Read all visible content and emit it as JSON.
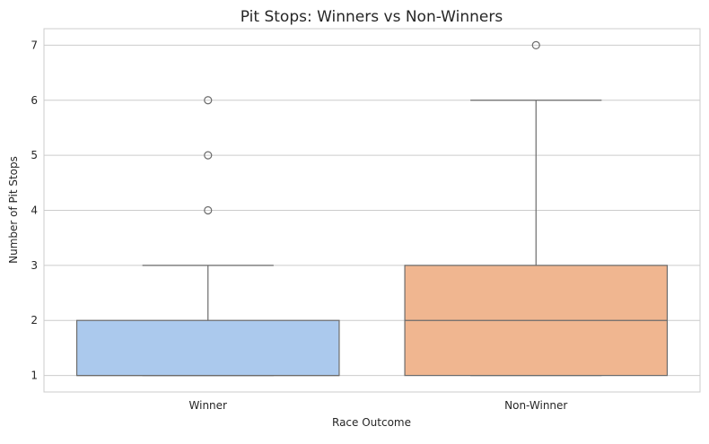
{
  "chart_data": {
    "type": "boxplot",
    "title": "Pit Stops: Winners vs Non-Winners",
    "xlabel": "Race Outcome",
    "ylabel": "Number of Pit Stops",
    "ylim": [
      0.7,
      7.3
    ],
    "yticks": [
      "1",
      "2",
      "3",
      "4",
      "5",
      "6",
      "7"
    ],
    "grid": true,
    "categories": [
      "Winner",
      "Non-Winner"
    ],
    "boxes": [
      {
        "category": "Winner",
        "color": "#abc9ed",
        "whisker_low": 1,
        "q1": 1,
        "median": 1,
        "q3": 2,
        "whisker_high": 3,
        "outliers": [
          4,
          5,
          6
        ]
      },
      {
        "category": "Non-Winner",
        "color": "#f0b690",
        "whisker_low": 1,
        "q1": 1,
        "median": 2,
        "q3": 3,
        "whisker_high": 6,
        "outliers": [
          7
        ]
      }
    ]
  }
}
